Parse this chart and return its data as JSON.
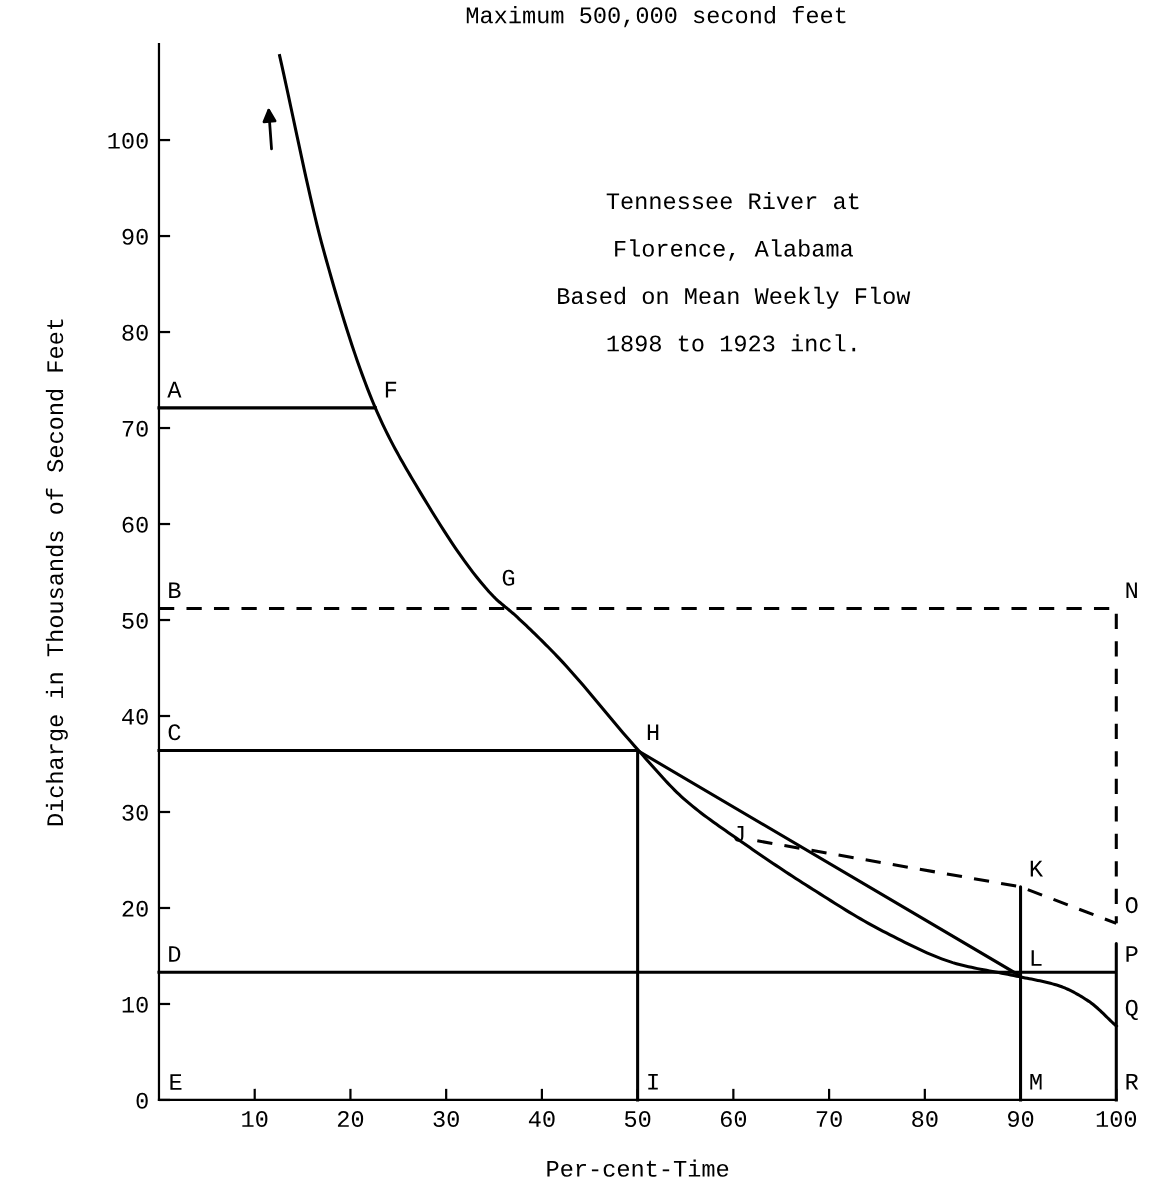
{
  "chart_data": {
    "type": "line",
    "title": "Maximum 500,000 second feet",
    "xlabel": "Per-cent-Time",
    "ylabel": "Dicharge in Thousands of Second Feet",
    "xlim": [
      0,
      100
    ],
    "ylim": [
      0,
      110
    ],
    "xticks": [
      10,
      20,
      30,
      40,
      50,
      60,
      70,
      80,
      90,
      100
    ],
    "yticks": [
      0,
      10,
      20,
      30,
      40,
      50,
      60,
      70,
      80,
      90,
      100
    ],
    "grid": false,
    "legend": false,
    "series": [
      {
        "color": "#000000",
        "line_style": "solid",
        "x": [
          12.6,
          17.2,
          22.6,
          26.4,
          34.9,
          37.2,
          41.8,
          50.1,
          54.8,
          61.0,
          67.9,
          75.6,
          83.3,
          89.6,
          94.0,
          97.1,
          100
        ],
        "values": [
          108.8,
          88.5,
          72.1,
          64.8,
          52.5,
          50.5,
          46.0,
          36.4,
          31.4,
          26.8,
          22.2,
          17.6,
          14.2,
          12.9,
          11.9,
          10.3,
          7.7
        ]
      },
      {
        "color": "#000000",
        "line_style": "solid",
        "x": [
          50,
          90,
          90,
          90
        ],
        "values": [
          36.4,
          12.9,
          22.2,
          0
        ]
      },
      {
        "color": "#000000",
        "line_style": "dashed",
        "x": [
          62.5,
          90,
          100
        ],
        "values": [
          27,
          22.2,
          18.4
        ]
      },
      {
        "color": "#000000",
        "line_style": "solid",
        "x": [
          0,
          22.6
        ],
        "values": [
          72.1,
          72.1
        ]
      },
      {
        "color": "#000000",
        "line_style": "dashed",
        "x": [
          0,
          100,
          100
        ],
        "values": [
          51.2,
          51.2,
          18.4
        ]
      },
      {
        "color": "#000000",
        "line_style": "solid",
        "x": [
          0,
          50,
          50
        ],
        "values": [
          36.4,
          36.4,
          0
        ]
      },
      {
        "color": "#000000",
        "line_style": "solid",
        "x": [
          0,
          100,
          100,
          100
        ],
        "values": [
          13.3,
          13.3,
          16.3,
          0
        ]
      }
    ],
    "annotations": [
      {
        "text": "A",
        "x": 0,
        "y": 72.1
      },
      {
        "text": "F",
        "x": 22.6,
        "y": 72.1
      },
      {
        "text": "B",
        "x": 0,
        "y": 51.2
      },
      {
        "text": "G",
        "x": 34.9,
        "y": 52.5
      },
      {
        "text": "N",
        "x": 100,
        "y": 51.2
      },
      {
        "text": "C",
        "x": 0,
        "y": 36.4
      },
      {
        "text": "H",
        "x": 50,
        "y": 36.4
      },
      {
        "text": "J",
        "x": 62.5,
        "y": 27
      },
      {
        "text": "K",
        "x": 90,
        "y": 22.2
      },
      {
        "text": "O",
        "x": 100,
        "y": 18.4
      },
      {
        "text": "D",
        "x": 0,
        "y": 13.3
      },
      {
        "text": "L",
        "x": 90,
        "y": 12.9
      },
      {
        "text": "P",
        "x": 100,
        "y": 13.3
      },
      {
        "text": "Q",
        "x": 100,
        "y": 7.7
      },
      "E",
      {
        "text": "I",
        "x": 50,
        "y": 0
      },
      {
        "text": "M",
        "x": 90,
        "y": 0
      },
      {
        "text": "R",
        "x": 100,
        "y": 0
      },
      "Tennessee River at\n\nFlorence, Alabama\n\nBased on Mean Weekly Flow\n\n1898 to 1923 incl."
    ]
  }
}
